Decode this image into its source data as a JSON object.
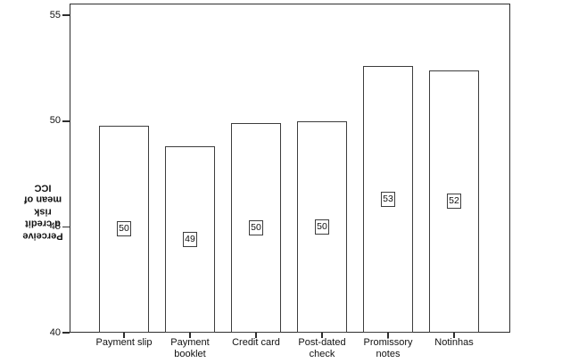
{
  "chart_data": {
    "type": "bar",
    "title": "",
    "xlabel": "",
    "ylabel": "Perceived credit risk mean of ICC",
    "ylabel_lines": [
      "Perceive",
      "d credit",
      "risk",
      "mean of",
      "ICC"
    ],
    "ylabel_rotated_180_degrees": true,
    "categories": [
      "Payment slip",
      "Payment booklet",
      "Credit card",
      "Post-dated check",
      "Promissory notes",
      "Notinhas"
    ],
    "category_label_lines": [
      [
        "Payment slip"
      ],
      [
        "Payment",
        "booklet"
      ],
      [
        "Credit card"
      ],
      [
        "Post-dated",
        "check"
      ],
      [
        "Promissory",
        "notes"
      ],
      [
        "Notinhas"
      ]
    ],
    "values": [
      49.8,
      48.8,
      49.9,
      50.0,
      52.6,
      52.4
    ],
    "bar_value_labels": [
      "50",
      "49",
      "50",
      "50",
      "53",
      "52"
    ],
    "y_ticks": [
      55,
      50,
      45,
      40
    ],
    "ylim": [
      40,
      55
    ],
    "grid": false,
    "legend": "none",
    "bar_fill_color": "#ffffff",
    "bar_border_color": "#3d3d3d",
    "axis_color": "#2e2e2e",
    "text_color": "#111111"
  }
}
